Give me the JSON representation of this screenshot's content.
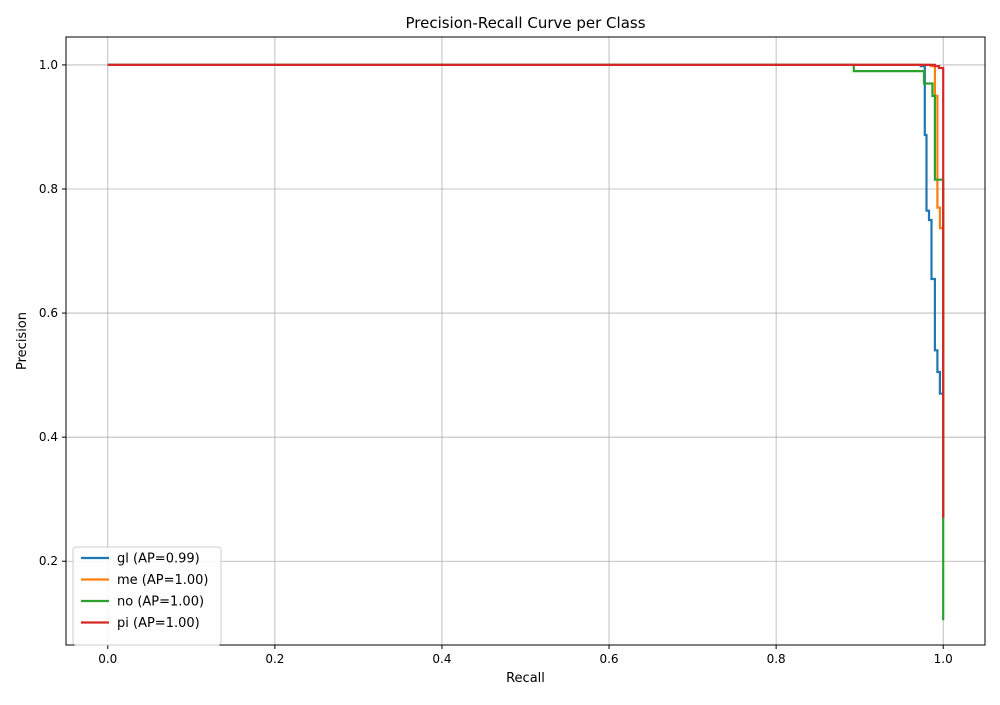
{
  "chart_data": {
    "type": "line",
    "title": "Precision-Recall Curve per Class",
    "xlabel": "Recall",
    "ylabel": "Precision",
    "xlim": [
      -0.05,
      1.05
    ],
    "ylim": [
      0.065,
      1.045
    ],
    "xticks": [
      0.0,
      0.2,
      0.4,
      0.6,
      0.8,
      1.0
    ],
    "xtick_labels": [
      "0.0",
      "0.2",
      "0.4",
      "0.6",
      "0.8",
      "1.0"
    ],
    "yticks": [
      0.2,
      0.4,
      0.6,
      0.8,
      1.0
    ],
    "ytick_labels": [
      "0.2",
      "0.4",
      "0.6",
      "0.8",
      "1.0"
    ],
    "grid": true,
    "legend_position": "lower-left",
    "series": [
      {
        "name": "gl (AP=0.99)",
        "color": "#1f77b4",
        "x": [
          0.0,
          0.973,
          0.973,
          0.978,
          0.978,
          0.98,
          0.98,
          0.983,
          0.983,
          0.986,
          0.986,
          0.99,
          0.99,
          0.993,
          0.993,
          0.996,
          0.996,
          1.0,
          1.0
        ],
        "y": [
          1.0,
          1.0,
          0.998,
          0.998,
          0.887,
          0.887,
          0.765,
          0.765,
          0.75,
          0.75,
          0.655,
          0.655,
          0.54,
          0.54,
          0.505,
          0.505,
          0.47,
          0.47,
          0.27
        ]
      },
      {
        "name": "me (AP=1.00)",
        "color": "#ff7f0e",
        "x": [
          0.0,
          0.985,
          0.985,
          0.99,
          0.99,
          0.993,
          0.993,
          0.996,
          0.996,
          1.0,
          1.0
        ],
        "y": [
          1.0,
          1.0,
          0.998,
          0.998,
          0.95,
          0.95,
          0.77,
          0.77,
          0.737,
          0.737,
          0.27
        ]
      },
      {
        "name": "no (AP=1.00)",
        "color": "#2ca02c",
        "x": [
          0.0,
          0.893,
          0.893,
          0.977,
          0.977,
          0.987,
          0.987,
          0.99,
          0.99,
          1.0,
          1.0
        ],
        "y": [
          1.0,
          1.0,
          0.99,
          0.99,
          0.97,
          0.97,
          0.95,
          0.95,
          0.815,
          0.815,
          0.105
        ]
      },
      {
        "name": "pi (AP=1.00)",
        "color": "#d62728",
        "x": [
          0.0,
          0.99,
          0.99,
          0.995,
          0.995,
          1.0,
          1.0
        ],
        "y": [
          1.0,
          1.0,
          0.998,
          0.998,
          0.995,
          0.995,
          0.27
        ]
      }
    ]
  }
}
